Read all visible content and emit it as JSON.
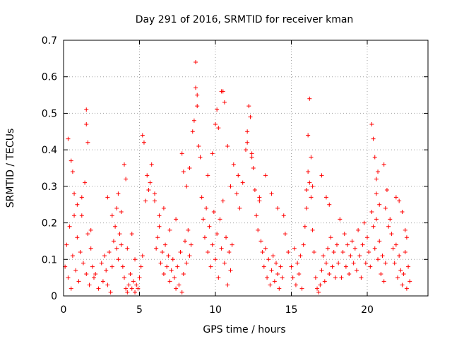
{
  "chart_data": {
    "type": "scatter",
    "title": "Day 291 of 2016, SRMTID for receiver kman",
    "xlabel": "GPS time / hours",
    "ylabel": "SRMTID / TECUs",
    "xlim": [
      0,
      24
    ],
    "ylim": [
      0,
      0.7
    ],
    "xticks": [
      0,
      5,
      10,
      15,
      20
    ],
    "xtick_labels": [
      "0",
      "5",
      "10",
      "15",
      "20"
    ],
    "yticks": [
      0,
      0.1,
      0.2,
      0.3,
      0.4,
      0.5,
      0.6,
      0.7
    ],
    "ytick_labels": [
      "0",
      "0.1",
      "0.2",
      "0.3",
      "0.4",
      "0.5",
      "0.6",
      "0.7"
    ],
    "grid": true,
    "marker": "+",
    "series": [
      {
        "name": "SRMTID",
        "color": "#ff0000",
        "x": [
          0.1,
          0.2,
          0.3,
          0.4,
          0.5,
          0.6,
          0.7,
          0.8,
          0.9,
          1.0,
          1.1,
          1.2,
          1.3,
          1.4,
          1.5,
          1.6,
          1.7,
          1.8,
          1.9,
          2.0,
          0.3,
          0.5,
          0.6,
          0.7,
          0.9,
          1.2,
          1.5,
          1.5,
          1.6,
          1.8,
          2.1,
          2.3,
          2.5,
          2.6,
          2.7,
          2.8,
          2.9,
          3.0,
          3.1,
          3.2,
          3.3,
          3.4,
          3.5,
          3.6,
          3.7,
          3.8,
          3.9,
          4.0,
          4.1,
          4.2,
          4.3,
          4.4,
          4.5,
          4.6,
          4.7,
          4.8,
          4.9,
          5.0,
          5.1,
          5.2,
          2.9,
          3.2,
          3.5,
          3.6,
          3.8,
          4.0,
          4.1,
          4.2,
          4.5,
          4.7,
          5.2,
          5.3,
          5.5,
          5.6,
          5.8,
          6.0,
          6.1,
          6.2,
          6.3,
          6.4,
          6.5,
          6.6,
          6.7,
          6.8,
          6.9,
          7.0,
          7.1,
          7.2,
          7.3,
          7.4,
          7.5,
          7.6,
          7.7,
          7.8,
          7.9,
          8.0,
          8.1,
          8.2,
          8.3,
          8.4,
          5.4,
          5.7,
          6.0,
          6.3,
          6.6,
          7.0,
          7.4,
          7.8,
          7.9,
          8.1,
          8.3,
          8.5,
          8.6,
          8.7,
          8.7,
          8.8,
          8.8,
          8.9,
          9.0,
          9.1,
          9.2,
          9.3,
          9.4,
          9.5,
          9.6,
          9.7,
          9.8,
          9.9,
          10.0,
          10.1,
          10.2,
          10.3,
          10.4,
          10.5,
          10.6,
          10.7,
          10.8,
          10.9,
          11.0,
          11.1,
          9.5,
          9.8,
          10.0,
          10.1,
          10.2,
          10.4,
          10.5,
          10.6,
          10.8,
          11.0,
          11.2,
          11.4,
          11.5,
          11.6,
          11.8,
          12.0,
          12.1,
          12.2,
          12.3,
          12.4,
          12.5,
          12.6,
          12.7,
          12.8,
          12.9,
          13.0,
          13.1,
          13.2,
          13.3,
          13.4,
          13.5,
          13.6,
          13.7,
          13.8,
          13.9,
          14.0,
          14.1,
          14.2,
          14.3,
          14.4,
          12.1,
          12.4,
          12.9,
          13.3,
          13.7,
          14.1,
          14.5,
          14.6,
          14.8,
          15.0,
          15.1,
          15.2,
          15.3,
          15.4,
          15.5,
          15.6,
          15.7,
          15.8,
          15.9,
          16.0,
          16.0,
          16.1,
          16.2,
          16.3,
          16.4,
          16.5,
          16.6,
          16.7,
          16.8,
          16.9,
          17.0,
          17.1,
          17.2,
          17.3,
          17.4,
          17.5,
          17.6,
          17.7,
          17.8,
          17.9,
          16.1,
          16.2,
          16.3,
          16.4,
          17.0,
          17.3,
          17.5,
          18.0,
          18.1,
          18.2,
          18.3,
          18.4,
          18.5,
          18.6,
          18.7,
          18.8,
          18.9,
          19.0,
          19.1,
          19.2,
          19.3,
          19.4,
          19.5,
          19.6,
          19.7,
          19.8,
          19.9,
          20.0,
          20.1,
          20.2,
          20.3,
          20.4,
          20.5,
          20.6,
          20.7,
          20.8,
          20.9,
          21.0,
          21.1,
          21.2,
          20.3,
          20.4,
          20.5,
          20.6,
          20.6,
          20.7,
          20.8,
          21.1,
          21.3,
          21.5,
          21.6,
          21.7,
          21.8,
          21.9,
          22.0,
          22.1,
          22.2,
          22.3,
          22.4,
          22.5,
          22.6,
          22.7,
          22.8,
          22.6,
          22.5,
          22.3,
          21.2,
          21.4,
          21.9,
          22.1
        ],
        "y": [
          0.08,
          0.14,
          0.05,
          0.19,
          0.02,
          0.11,
          0.28,
          0.07,
          0.16,
          0.04,
          0.12,
          0.22,
          0.09,
          0.31,
          0.06,
          0.17,
          0.03,
          0.13,
          0.08,
          0.05,
          0.43,
          0.37,
          0.34,
          0.22,
          0.25,
          0.27,
          0.51,
          0.47,
          0.42,
          0.18,
          0.06,
          0.02,
          0.09,
          0.04,
          0.11,
          0.07,
          0.03,
          0.12,
          0.01,
          0.08,
          0.15,
          0.19,
          0.13,
          0.1,
          0.17,
          0.14,
          0.08,
          0.05,
          0.02,
          0.01,
          0.03,
          0.06,
          0.02,
          0.04,
          0.01,
          0.03,
          0.02,
          0.05,
          0.08,
          0.11,
          0.27,
          0.22,
          0.24,
          0.28,
          0.23,
          0.36,
          0.32,
          0.13,
          0.17,
          0.1,
          0.44,
          0.42,
          0.33,
          0.29,
          0.36,
          0.26,
          0.13,
          0.16,
          0.19,
          0.09,
          0.12,
          0.06,
          0.14,
          0.08,
          0.11,
          0.04,
          0.07,
          0.1,
          0.05,
          0.02,
          0.08,
          0.03,
          0.12,
          0.01,
          0.06,
          0.15,
          0.09,
          0.18,
          0.11,
          0.14,
          0.26,
          0.31,
          0.28,
          0.22,
          0.24,
          0.18,
          0.21,
          0.39,
          0.34,
          0.3,
          0.35,
          0.45,
          0.48,
          0.64,
          0.57,
          0.55,
          0.52,
          0.41,
          0.38,
          0.27,
          0.21,
          0.16,
          0.24,
          0.12,
          0.19,
          0.08,
          0.14,
          0.23,
          0.1,
          0.17,
          0.05,
          0.21,
          0.13,
          0.26,
          0.09,
          0.16,
          0.03,
          0.12,
          0.07,
          0.14,
          0.33,
          0.39,
          0.47,
          0.51,
          0.46,
          0.56,
          0.56,
          0.53,
          0.41,
          0.3,
          0.36,
          0.28,
          0.33,
          0.24,
          0.31,
          0.4,
          0.45,
          0.52,
          0.49,
          0.39,
          0.35,
          0.29,
          0.22,
          0.18,
          0.26,
          0.15,
          0.12,
          0.08,
          0.13,
          0.05,
          0.1,
          0.03,
          0.07,
          0.11,
          0.04,
          0.09,
          0.06,
          0.02,
          0.08,
          0.05,
          0.42,
          0.38,
          0.27,
          0.33,
          0.28,
          0.24,
          0.22,
          0.17,
          0.12,
          0.08,
          0.05,
          0.13,
          0.03,
          0.09,
          0.06,
          0.11,
          0.02,
          0.14,
          0.19,
          0.24,
          0.29,
          0.34,
          0.31,
          0.27,
          0.18,
          0.12,
          0.05,
          0.02,
          0.01,
          0.03,
          0.07,
          0.11,
          0.04,
          0.09,
          0.13,
          0.06,
          0.16,
          0.08,
          0.12,
          0.05,
          0.44,
          0.54,
          0.38,
          0.3,
          0.33,
          0.27,
          0.25,
          0.14,
          0.09,
          0.21,
          0.05,
          0.12,
          0.17,
          0.08,
          0.14,
          0.06,
          0.11,
          0.15,
          0.09,
          0.13,
          0.07,
          0.18,
          0.11,
          0.05,
          0.14,
          0.2,
          0.09,
          0.16,
          0.12,
          0.08,
          0.23,
          0.19,
          0.13,
          0.21,
          0.1,
          0.15,
          0.06,
          0.11,
          0.04,
          0.09,
          0.47,
          0.43,
          0.38,
          0.32,
          0.28,
          0.34,
          0.25,
          0.36,
          0.29,
          0.21,
          0.17,
          0.13,
          0.09,
          0.14,
          0.05,
          0.11,
          0.07,
          0.03,
          0.06,
          0.12,
          0.02,
          0.08,
          0.04,
          0.16,
          0.18,
          0.23,
          0.24,
          0.19,
          0.27,
          0.26
        ]
      }
    ]
  }
}
